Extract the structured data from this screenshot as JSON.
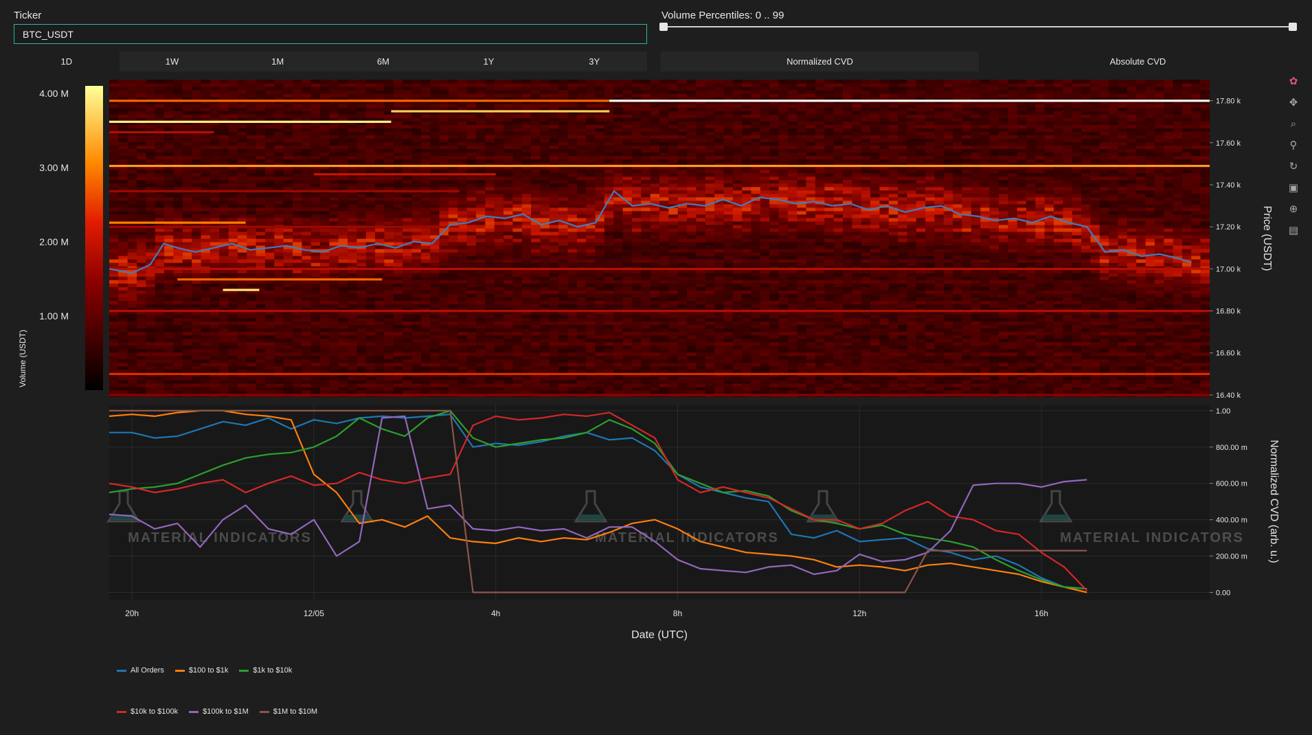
{
  "controls": {
    "ticker_label": "Ticker",
    "ticker_value": "BTC_USDT",
    "percentile_label": "Volume Percentiles: 0 .. 99",
    "percentile_range": [
      0,
      99
    ],
    "timeframes": [
      "1D",
      "1W",
      "1M",
      "6M",
      "1Y",
      "3Y"
    ],
    "active_timeframe": "1D",
    "cvd_modes": [
      "Normalized CVD",
      "Absolute CVD"
    ],
    "active_mode": "Absolute CVD"
  },
  "modebar_icons": [
    "plotly-logo-icon",
    "pan-icon",
    "zoom-icon",
    "zoom-compare-icon",
    "reset-icon",
    "save-icon",
    "crosshair-icon",
    "comment-icon"
  ],
  "watermark_text": "MATERIAL INDICATORS",
  "colors": {
    "background": "#1e1e1e",
    "plot_bg": "#181818",
    "price_line": "#3b7fc2",
    "input_border": "#2fb5a8"
  },
  "chart_data": [
    {
      "type": "heatmap",
      "colorbar": {
        "title": "Volume (USDT)",
        "ticks": [
          "1.00 M",
          "2.00 M",
          "3.00 M",
          "4.00 M"
        ],
        "tick_values": [
          1000000,
          2000000,
          3000000,
          4000000
        ],
        "range": [
          0,
          4100000
        ]
      },
      "y_axis": {
        "title": "Price (USDT)",
        "ticks": [
          "16.40 k",
          "16.60 k",
          "16.80 k",
          "17.00 k",
          "17.20 k",
          "17.40 k",
          "17.60 k",
          "17.80 k"
        ],
        "tick_values": [
          16400,
          16600,
          16800,
          17000,
          17200,
          17400,
          17600,
          17800
        ],
        "range": [
          16390,
          17900
        ]
      },
      "x_range_hours": [
        -4.5,
        19.7
      ],
      "price_series": {
        "name": "Price",
        "x_hours": [
          -4.5,
          -4.0,
          -3.6,
          -3.3,
          -3.0,
          -2.6,
          -2.2,
          -1.8,
          -1.4,
          -1.0,
          -0.6,
          -0.2,
          0.2,
          0.6,
          1.0,
          1.4,
          1.8,
          2.2,
          2.6,
          3.0,
          3.4,
          3.8,
          4.2,
          4.6,
          5.0,
          5.4,
          5.8,
          6.2,
          6.6,
          7.0,
          7.4,
          7.8,
          8.2,
          8.6,
          9.0,
          9.4,
          9.8,
          10.2,
          10.6,
          11.0,
          11.4,
          11.8,
          12.2,
          12.6,
          13.0,
          13.4,
          13.8,
          14.2,
          14.6,
          15.0,
          15.4,
          15.8,
          16.2,
          16.6,
          17.0,
          17.4,
          17.8,
          18.2,
          18.6,
          19.0,
          19.3
        ],
        "y": [
          17000,
          16980,
          17020,
          17120,
          17100,
          17080,
          17100,
          17120,
          17090,
          17100,
          17110,
          17090,
          17080,
          17110,
          17100,
          17120,
          17100,
          17130,
          17120,
          17210,
          17220,
          17250,
          17240,
          17260,
          17210,
          17230,
          17200,
          17220,
          17370,
          17300,
          17310,
          17290,
          17310,
          17300,
          17330,
          17300,
          17340,
          17330,
          17310,
          17320,
          17300,
          17310,
          17280,
          17300,
          17270,
          17290,
          17300,
          17260,
          17250,
          17230,
          17240,
          17220,
          17250,
          17220,
          17200,
          17080,
          17090,
          17060,
          17070,
          17050,
          17030
        ]
      },
      "bright_levels": [
        {
          "price": 17800,
          "from": -4.5,
          "to": 19.7,
          "intensity": 0.7,
          "extra": "white-right"
        },
        {
          "price": 17750,
          "from": 1.7,
          "to": 6.5,
          "intensity": 0.9
        },
        {
          "price": 17700,
          "from": -4.5,
          "to": 1.7,
          "intensity": 0.98
        },
        {
          "price": 17650,
          "from": -4.5,
          "to": -2.2,
          "intensity": 0.5
        },
        {
          "price": 17490,
          "from": -4.5,
          "to": 19.7,
          "intensity": 0.8
        },
        {
          "price": 17450,
          "from": 0.0,
          "to": 4.0,
          "intensity": 0.55
        },
        {
          "price": 17370,
          "from": -4.5,
          "to": 3.2,
          "intensity": 0.45
        },
        {
          "price": 17220,
          "from": -4.5,
          "to": -1.5,
          "intensity": 0.75
        },
        {
          "price": 17200,
          "from": -4.5,
          "to": 3.2,
          "intensity": 0.45
        },
        {
          "price": 17000,
          "from": -4.5,
          "to": 19.7,
          "intensity": 0.5
        },
        {
          "price": 16950,
          "from": -3.0,
          "to": 1.5,
          "intensity": 0.7
        },
        {
          "price": 16900,
          "from": -2.0,
          "to": -1.2,
          "intensity": 0.95
        },
        {
          "price": 16800,
          "from": -4.5,
          "to": 19.7,
          "intensity": 0.5
        },
        {
          "price": 16500,
          "from": -4.5,
          "to": 19.7,
          "intensity": 0.6
        },
        {
          "price": 16400,
          "from": -4.5,
          "to": 19.7,
          "intensity": 0.4
        }
      ]
    },
    {
      "type": "line",
      "x_axis": {
        "title": "Date (UTC)",
        "ticks": [
          "20h",
          "12/05",
          "4h",
          "8h",
          "12h",
          "16h"
        ],
        "tick_values": [
          -4.0,
          0,
          4,
          8,
          12,
          16
        ],
        "range": [
          -4.5,
          19.7
        ]
      },
      "y_axis": {
        "title": "Normalized CVD (arb. u.)",
        "ticks": [
          "0.00",
          "200.00 m",
          "400.00 m",
          "600.00 m",
          "800.00 m",
          "1.00"
        ],
        "tick_values": [
          0,
          0.2,
          0.4,
          0.6,
          0.8,
          1.0
        ],
        "range": [
          -0.04,
          1.03
        ]
      },
      "x": [
        -7.0,
        -6.5,
        -6.0,
        -5.5,
        -5.0,
        -4.5,
        -4.0,
        -3.5,
        -3.0,
        -2.5,
        -2.0,
        -1.5,
        -1.0,
        -0.5,
        0.0,
        0.5,
        1.0,
        1.5,
        2.0,
        2.5,
        3.0,
        3.5,
        4.0,
        4.5,
        5.0,
        5.5,
        6.0,
        6.5,
        7.0,
        7.5,
        8.0,
        8.5,
        9.0,
        9.5,
        10.0,
        10.5,
        11.0,
        11.5,
        12.0,
        12.5,
        13.0,
        13.5,
        14.0,
        14.5,
        15.0,
        15.5,
        16.0,
        16.5,
        17.0
      ],
      "series": [
        {
          "name": "All Orders",
          "color": "#1f77b4",
          "values": [
            0.62,
            0.7,
            0.82,
            0.85,
            0.86,
            0.88,
            0.88,
            0.85,
            0.86,
            0.9,
            0.94,
            0.92,
            0.96,
            0.9,
            0.95,
            0.93,
            0.96,
            0.97,
            0.96,
            0.97,
            0.98,
            0.8,
            0.82,
            0.81,
            0.83,
            0.86,
            0.88,
            0.84,
            0.85,
            0.78,
            0.65,
            0.58,
            0.55,
            0.52,
            0.5,
            0.32,
            0.3,
            0.34,
            0.28,
            0.29,
            0.3,
            0.24,
            0.22,
            0.18,
            0.2,
            0.15,
            0.08,
            0.03,
            0.02
          ]
        },
        {
          "name": "$100 to $1k",
          "color": "#ff7f0e",
          "values": [
            0.8,
            0.84,
            0.95,
            0.97,
            0.98,
            0.97,
            0.98,
            0.97,
            0.99,
            1.0,
            1.0,
            0.98,
            0.97,
            0.95,
            0.65,
            0.55,
            0.38,
            0.4,
            0.36,
            0.42,
            0.3,
            0.28,
            0.27,
            0.3,
            0.28,
            0.3,
            0.29,
            0.33,
            0.38,
            0.4,
            0.35,
            0.28,
            0.25,
            0.22,
            0.21,
            0.2,
            0.18,
            0.14,
            0.15,
            0.14,
            0.12,
            0.15,
            0.16,
            0.14,
            0.12,
            0.1,
            0.06,
            0.03,
            0.0
          ]
        },
        {
          "name": "$1k to $10k",
          "color": "#2ca02c",
          "values": [
            0.3,
            0.38,
            0.48,
            0.53,
            0.55,
            0.55,
            0.57,
            0.58,
            0.6,
            0.65,
            0.7,
            0.74,
            0.76,
            0.77,
            0.8,
            0.86,
            0.96,
            0.9,
            0.86,
            0.96,
            1.0,
            0.85,
            0.8,
            0.82,
            0.84,
            0.85,
            0.88,
            0.95,
            0.9,
            0.82,
            0.65,
            0.6,
            0.55,
            0.56,
            0.53,
            0.45,
            0.4,
            0.38,
            0.35,
            0.37,
            0.32,
            0.3,
            0.28,
            0.25,
            0.18,
            0.12,
            0.07,
            0.03,
            0.02
          ]
        },
        {
          "name": "$10k to $100k",
          "color": "#d62728",
          "values": [
            0.75,
            0.7,
            0.75,
            0.68,
            0.65,
            0.6,
            0.58,
            0.55,
            0.57,
            0.6,
            0.62,
            0.55,
            0.6,
            0.64,
            0.59,
            0.6,
            0.66,
            0.62,
            0.6,
            0.63,
            0.65,
            0.92,
            0.97,
            0.95,
            0.96,
            0.98,
            0.97,
            0.99,
            0.92,
            0.85,
            0.62,
            0.55,
            0.58,
            0.55,
            0.52,
            0.46,
            0.4,
            0.4,
            0.35,
            0.38,
            0.45,
            0.5,
            0.42,
            0.4,
            0.34,
            0.32,
            0.22,
            0.14,
            0.01
          ]
        },
        {
          "name": "$100k to $1M",
          "color": "#9467bd",
          "values": [
            0.03,
            0.02,
            0.05,
            0.08,
            0.3,
            0.43,
            0.42,
            0.35,
            0.38,
            0.25,
            0.4,
            0.48,
            0.35,
            0.32,
            0.4,
            0.2,
            0.28,
            0.96,
            0.97,
            0.46,
            0.48,
            0.35,
            0.34,
            0.36,
            0.34,
            0.35,
            0.3,
            0.36,
            0.36,
            0.28,
            0.18,
            0.13,
            0.12,
            0.11,
            0.14,
            0.15,
            0.1,
            0.12,
            0.21,
            0.17,
            0.18,
            0.22,
            0.34,
            0.59,
            0.6,
            0.6,
            0.58,
            0.61,
            0.62
          ]
        },
        {
          "name": "$1M to $10M",
          "color": "#8c564b",
          "values": [
            1.0,
            1.0,
            1.0,
            1.0,
            1.0,
            1.0,
            1.0,
            1.0,
            1.0,
            1.0,
            1.0,
            1.0,
            1.0,
            1.0,
            1.0,
            1.0,
            1.0,
            1.0,
            1.0,
            1.0,
            1.0,
            0.0,
            0.0,
            0.0,
            0.0,
            0.0,
            0.0,
            0.0,
            0.0,
            0.0,
            0.0,
            0.0,
            0.0,
            0.0,
            0.0,
            0.0,
            0.0,
            0.0,
            0.0,
            0.0,
            0.0,
            0.23,
            0.23,
            0.23,
            0.23,
            0.23,
            0.23,
            0.23,
            0.23
          ]
        }
      ],
      "legend": {
        "placement": "bottom-left",
        "rows": [
          [
            "All Orders",
            "$100 to $1k",
            "$1k to $10k"
          ],
          [
            "$10k to $100k",
            "$100k to $1M",
            "$1M to $10M"
          ]
        ]
      }
    }
  ]
}
